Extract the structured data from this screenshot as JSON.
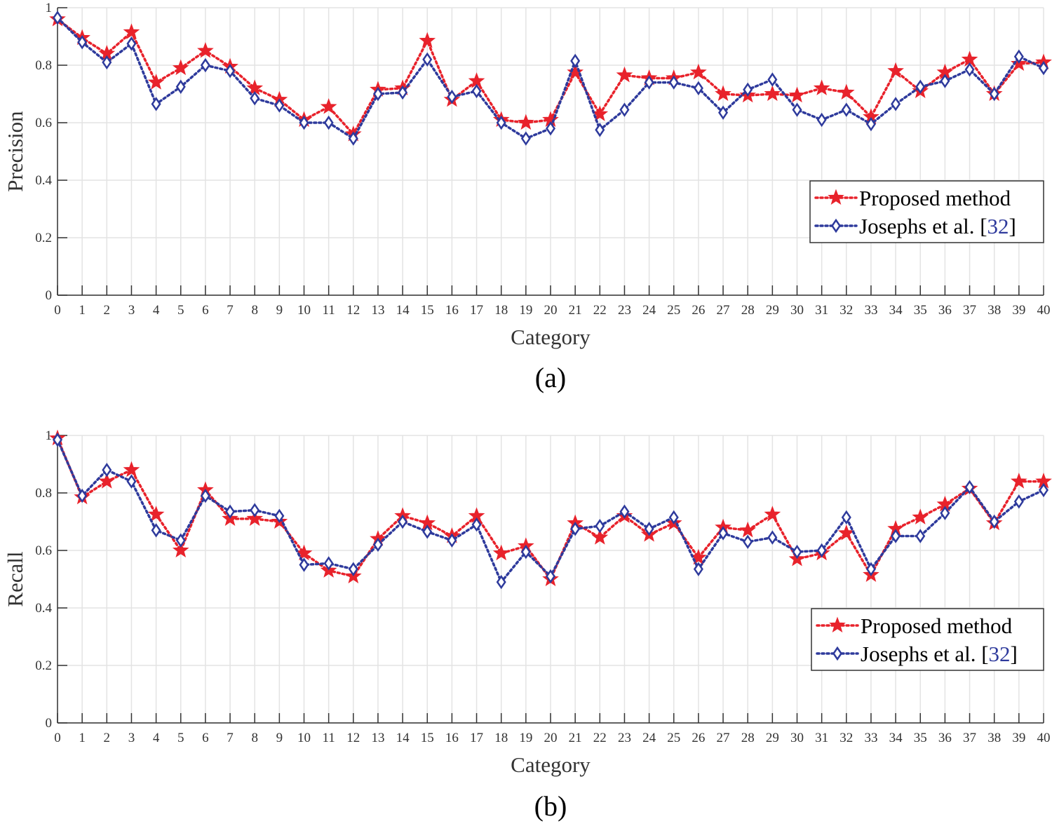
{
  "chart_data": [
    {
      "type": "line",
      "caption": "(a)",
      "xlabel": "Category",
      "ylabel": "Precision",
      "xlim": [
        0,
        40
      ],
      "ylim": [
        0,
        1
      ],
      "x": [
        0,
        1,
        2,
        3,
        4,
        5,
        6,
        7,
        8,
        9,
        10,
        11,
        12,
        13,
        14,
        15,
        16,
        17,
        18,
        19,
        20,
        21,
        22,
        23,
        24,
        25,
        26,
        27,
        28,
        29,
        30,
        31,
        32,
        33,
        34,
        35,
        36,
        37,
        38,
        39,
        40
      ],
      "xticks": [
        "0",
        "1",
        "2",
        "3",
        "4",
        "5",
        "6",
        "7",
        "8",
        "9",
        "10",
        "11",
        "12",
        "13",
        "14",
        "15",
        "16",
        "17",
        "18",
        "19",
        "20",
        "21",
        "22",
        "23",
        "24",
        "25",
        "26",
        "27",
        "28",
        "29",
        "30",
        "31",
        "32",
        "33",
        "34",
        "35",
        "36",
        "37",
        "38",
        "39",
        "40"
      ],
      "yticks": [
        "0",
        "0.2",
        "0.4",
        "0.6",
        "0.8",
        "1"
      ],
      "grid": true,
      "legend_position": "lower-right",
      "legend": {
        "entries": [
          {
            "label": "Proposed method"
          },
          {
            "label": "Josephs et al. [",
            "ref": "32",
            "close": "]"
          }
        ]
      },
      "series": [
        {
          "name": "Proposed method",
          "color": "#e8222b",
          "marker": "star",
          "line": "dotted",
          "values": [
            0.96,
            0.895,
            0.84,
            0.915,
            0.74,
            0.79,
            0.85,
            0.795,
            0.72,
            0.68,
            0.61,
            0.655,
            0.56,
            0.715,
            0.72,
            0.885,
            0.68,
            0.745,
            0.61,
            0.6,
            0.61,
            0.775,
            0.63,
            0.765,
            0.755,
            0.755,
            0.775,
            0.7,
            0.695,
            0.7,
            0.695,
            0.72,
            0.705,
            0.62,
            0.78,
            0.71,
            0.775,
            0.82,
            0.7,
            0.805,
            0.81
          ]
        },
        {
          "name": "Josephs et al. [32]",
          "color": "#2e3a9c",
          "marker": "diamond",
          "line": "dotted",
          "values": [
            0.965,
            0.88,
            0.81,
            0.875,
            0.665,
            0.725,
            0.8,
            0.78,
            0.685,
            0.66,
            0.6,
            0.6,
            0.545,
            0.7,
            0.705,
            0.82,
            0.69,
            0.71,
            0.6,
            0.545,
            0.58,
            0.815,
            0.575,
            0.645,
            0.74,
            0.74,
            0.72,
            0.635,
            0.715,
            0.75,
            0.645,
            0.61,
            0.645,
            0.595,
            0.665,
            0.725,
            0.745,
            0.785,
            0.7,
            0.83,
            0.79
          ]
        }
      ]
    },
    {
      "type": "line",
      "caption": "(b)",
      "xlabel": "Category",
      "ylabel": "Recall",
      "xlim": [
        0,
        40
      ],
      "ylim": [
        0,
        1
      ],
      "x": [
        0,
        1,
        2,
        3,
        4,
        5,
        6,
        7,
        8,
        9,
        10,
        11,
        12,
        13,
        14,
        15,
        16,
        17,
        18,
        19,
        20,
        21,
        22,
        23,
        24,
        25,
        26,
        27,
        28,
        29,
        30,
        31,
        32,
        33,
        34,
        35,
        36,
        37,
        38,
        39,
        40
      ],
      "xticks": [
        "0",
        "1",
        "2",
        "3",
        "4",
        "5",
        "6",
        "7",
        "8",
        "9",
        "10",
        "11",
        "12",
        "13",
        "14",
        "15",
        "16",
        "17",
        "18",
        "19",
        "20",
        "21",
        "22",
        "23",
        "24",
        "25",
        "26",
        "27",
        "28",
        "29",
        "30",
        "31",
        "32",
        "33",
        "34",
        "35",
        "36",
        "37",
        "38",
        "39",
        "40"
      ],
      "yticks": [
        "0",
        "0.2",
        "0.4",
        "0.6",
        "0.8",
        "1"
      ],
      "grid": true,
      "legend_position": "lower-right",
      "legend": {
        "entries": [
          {
            "label": "Proposed method"
          },
          {
            "label": "Josephs et al. [",
            "ref": "32",
            "close": "]"
          }
        ]
      },
      "series": [
        {
          "name": "Proposed method",
          "color": "#e8222b",
          "marker": "star",
          "line": "dotted",
          "values": [
            0.99,
            0.785,
            0.84,
            0.88,
            0.725,
            0.6,
            0.81,
            0.71,
            0.71,
            0.7,
            0.59,
            0.53,
            0.51,
            0.64,
            0.72,
            0.695,
            0.65,
            0.72,
            0.59,
            0.615,
            0.5,
            0.695,
            0.645,
            0.72,
            0.655,
            0.695,
            0.575,
            0.68,
            0.67,
            0.725,
            0.57,
            0.59,
            0.66,
            0.515,
            0.675,
            0.715,
            0.76,
            0.815,
            0.695,
            0.84,
            0.84
          ]
        },
        {
          "name": "Josephs et al. [32]",
          "color": "#2e3a9c",
          "marker": "diamond",
          "line": "dotted",
          "values": [
            0.985,
            0.79,
            0.88,
            0.84,
            0.67,
            0.635,
            0.79,
            0.735,
            0.74,
            0.72,
            0.55,
            0.555,
            0.535,
            0.62,
            0.7,
            0.665,
            0.635,
            0.69,
            0.49,
            0.595,
            0.51,
            0.675,
            0.685,
            0.735,
            0.675,
            0.715,
            0.535,
            0.66,
            0.63,
            0.645,
            0.595,
            0.6,
            0.715,
            0.535,
            0.65,
            0.65,
            0.73,
            0.82,
            0.7,
            0.77,
            0.81
          ]
        }
      ]
    }
  ]
}
